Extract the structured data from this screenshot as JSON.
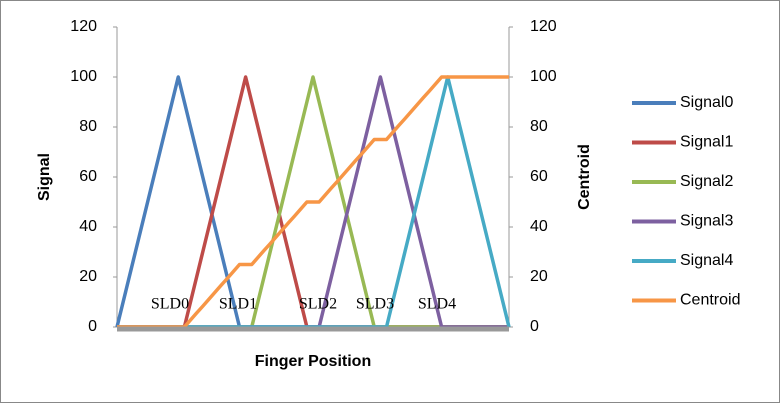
{
  "chart_data": {
    "type": "line",
    "x_label": "Finger Position",
    "y_label": "Signal",
    "y2_label": "Centroid",
    "categories": [
      null,
      null,
      null,
      null,
      null,
      null,
      null,
      null,
      null,
      null,
      null,
      null,
      null,
      null,
      null,
      null,
      null,
      null,
      null,
      null,
      null,
      null,
      null,
      null,
      null,
      null,
      null,
      null,
      null,
      null,
      null,
      null,
      null,
      null,
      null,
      null,
      null,
      null,
      null,
      null,
      null,
      null,
      null,
      null,
      null,
      null,
      null,
      null,
      null,
      null,
      null,
      null,
      null,
      null,
      null,
      null,
      null,
      null,
      null,
      null,
      null,
      null,
      null,
      null,
      null
    ],
    "ylim": [
      0,
      120
    ],
    "yticks": [
      0,
      20,
      40,
      60,
      80,
      100,
      120
    ],
    "y2lim": [
      0,
      120
    ],
    "y2ticks": [
      0,
      20,
      40,
      60,
      80,
      100,
      120
    ],
    "grid": false,
    "legend": "right",
    "annotations": [
      "SLD0",
      "SLD1",
      "SLD2",
      "SLD3",
      "SLD4"
    ],
    "series": [
      {
        "name": "Signal0",
        "color": "#4a7ebb",
        "values": [
          0,
          10,
          20,
          30,
          40,
          50,
          60,
          70,
          80,
          90,
          100,
          90,
          80,
          70,
          60,
          50,
          40,
          30,
          20,
          10,
          0,
          0,
          0,
          0,
          0,
          0,
          0,
          0,
          0,
          0,
          0,
          0,
          0,
          0,
          0,
          0,
          0,
          0,
          0,
          0,
          0,
          0,
          0,
          0,
          0,
          0,
          0,
          0,
          0,
          0,
          0,
          0,
          0,
          0,
          0,
          0,
          0,
          0,
          0,
          0,
          0,
          0,
          0,
          0,
          0
        ]
      },
      {
        "name": "Signal1",
        "color": "#be4b48",
        "values": [
          0,
          0,
          0,
          0,
          0,
          0,
          0,
          0,
          0,
          0,
          0,
          0,
          10,
          20,
          30,
          40,
          50,
          60,
          70,
          80,
          90,
          100,
          90,
          80,
          70,
          60,
          50,
          40,
          30,
          20,
          10,
          0,
          0,
          0,
          0,
          0,
          0,
          0,
          0,
          0,
          0,
          0,
          0,
          0,
          0,
          0,
          0,
          0,
          0,
          0,
          0,
          0,
          0,
          0,
          0,
          0,
          0,
          0,
          0,
          0,
          0,
          0,
          0,
          0,
          0
        ]
      },
      {
        "name": "Signal2",
        "color": "#98b954",
        "values": [
          0,
          0,
          0,
          0,
          0,
          0,
          0,
          0,
          0,
          0,
          0,
          0,
          0,
          0,
          0,
          0,
          0,
          0,
          0,
          0,
          0,
          0,
          0,
          10,
          20,
          30,
          40,
          50,
          60,
          70,
          80,
          90,
          100,
          90,
          80,
          70,
          60,
          50,
          40,
          30,
          20,
          10,
          0,
          0,
          0,
          0,
          0,
          0,
          0,
          0,
          0,
          0,
          0,
          0,
          0,
          0,
          0,
          0,
          0,
          0,
          0,
          0,
          0,
          0,
          0
        ]
      },
      {
        "name": "Signal3",
        "color": "#7d60a0",
        "values": [
          0,
          0,
          0,
          0,
          0,
          0,
          0,
          0,
          0,
          0,
          0,
          0,
          0,
          0,
          0,
          0,
          0,
          0,
          0,
          0,
          0,
          0,
          0,
          0,
          0,
          0,
          0,
          0,
          0,
          0,
          0,
          0,
          0,
          0,
          10,
          20,
          30,
          40,
          50,
          60,
          70,
          80,
          90,
          100,
          90,
          80,
          70,
          60,
          50,
          40,
          30,
          20,
          10,
          0,
          0,
          0,
          0,
          0,
          0,
          0,
          0,
          0,
          0,
          0,
          0
        ]
      },
      {
        "name": "Signal4",
        "color": "#46aac5",
        "values": [
          0,
          0,
          0,
          0,
          0,
          0,
          0,
          0,
          0,
          0,
          0,
          0,
          0,
          0,
          0,
          0,
          0,
          0,
          0,
          0,
          0,
          0,
          0,
          0,
          0,
          0,
          0,
          0,
          0,
          0,
          0,
          0,
          0,
          0,
          0,
          0,
          0,
          0,
          0,
          0,
          0,
          0,
          0,
          0,
          0,
          10,
          20,
          30,
          40,
          50,
          60,
          70,
          80,
          90,
          100,
          90,
          80,
          70,
          60,
          50,
          40,
          30,
          20,
          10,
          0
        ]
      },
      {
        "name": "Centroid",
        "color": "#f79646",
        "axis": "y2",
        "values": [
          0,
          0,
          0,
          0,
          0,
          0,
          0,
          0,
          0,
          0,
          0,
          0,
          2.8,
          5.6,
          8.3,
          11.1,
          13.9,
          16.7,
          19.4,
          22.2,
          25,
          25,
          25,
          27.8,
          30.6,
          33.3,
          36.1,
          38.9,
          41.7,
          44.4,
          47.2,
          50,
          50,
          50,
          52.8,
          55.6,
          58.3,
          61.1,
          63.9,
          66.7,
          69.4,
          72.2,
          75,
          75,
          75,
          77.8,
          80.6,
          83.3,
          86.1,
          88.9,
          91.7,
          94.4,
          97.2,
          100,
          100,
          100,
          100,
          100,
          100,
          100,
          100,
          100,
          100,
          100,
          100
        ]
      }
    ]
  }
}
